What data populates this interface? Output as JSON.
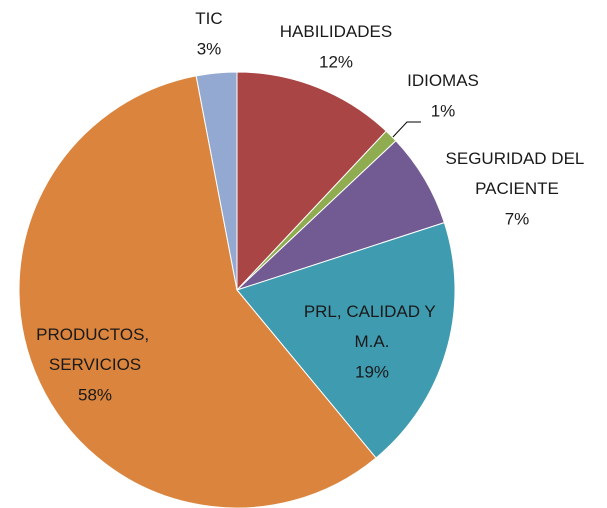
{
  "chart_data": {
    "type": "pie",
    "categories": [
      "HABILIDADES",
      "IDIOMAS",
      "SEGURIDAD DEL PACIENTE",
      "PRL, CALIDAD Y M.A.",
      "PRODUCTOS, SERVICIOS",
      "TIC"
    ],
    "values": [
      12,
      1,
      7,
      19,
      58,
      3
    ],
    "value_labels": [
      "12%",
      "1%",
      "7%",
      "19%",
      "58%",
      "3%"
    ],
    "colors": [
      "#a94544",
      "#8fad50",
      "#725a92",
      "#3f9bb0",
      "#db843d",
      "#93a9d1"
    ]
  }
}
